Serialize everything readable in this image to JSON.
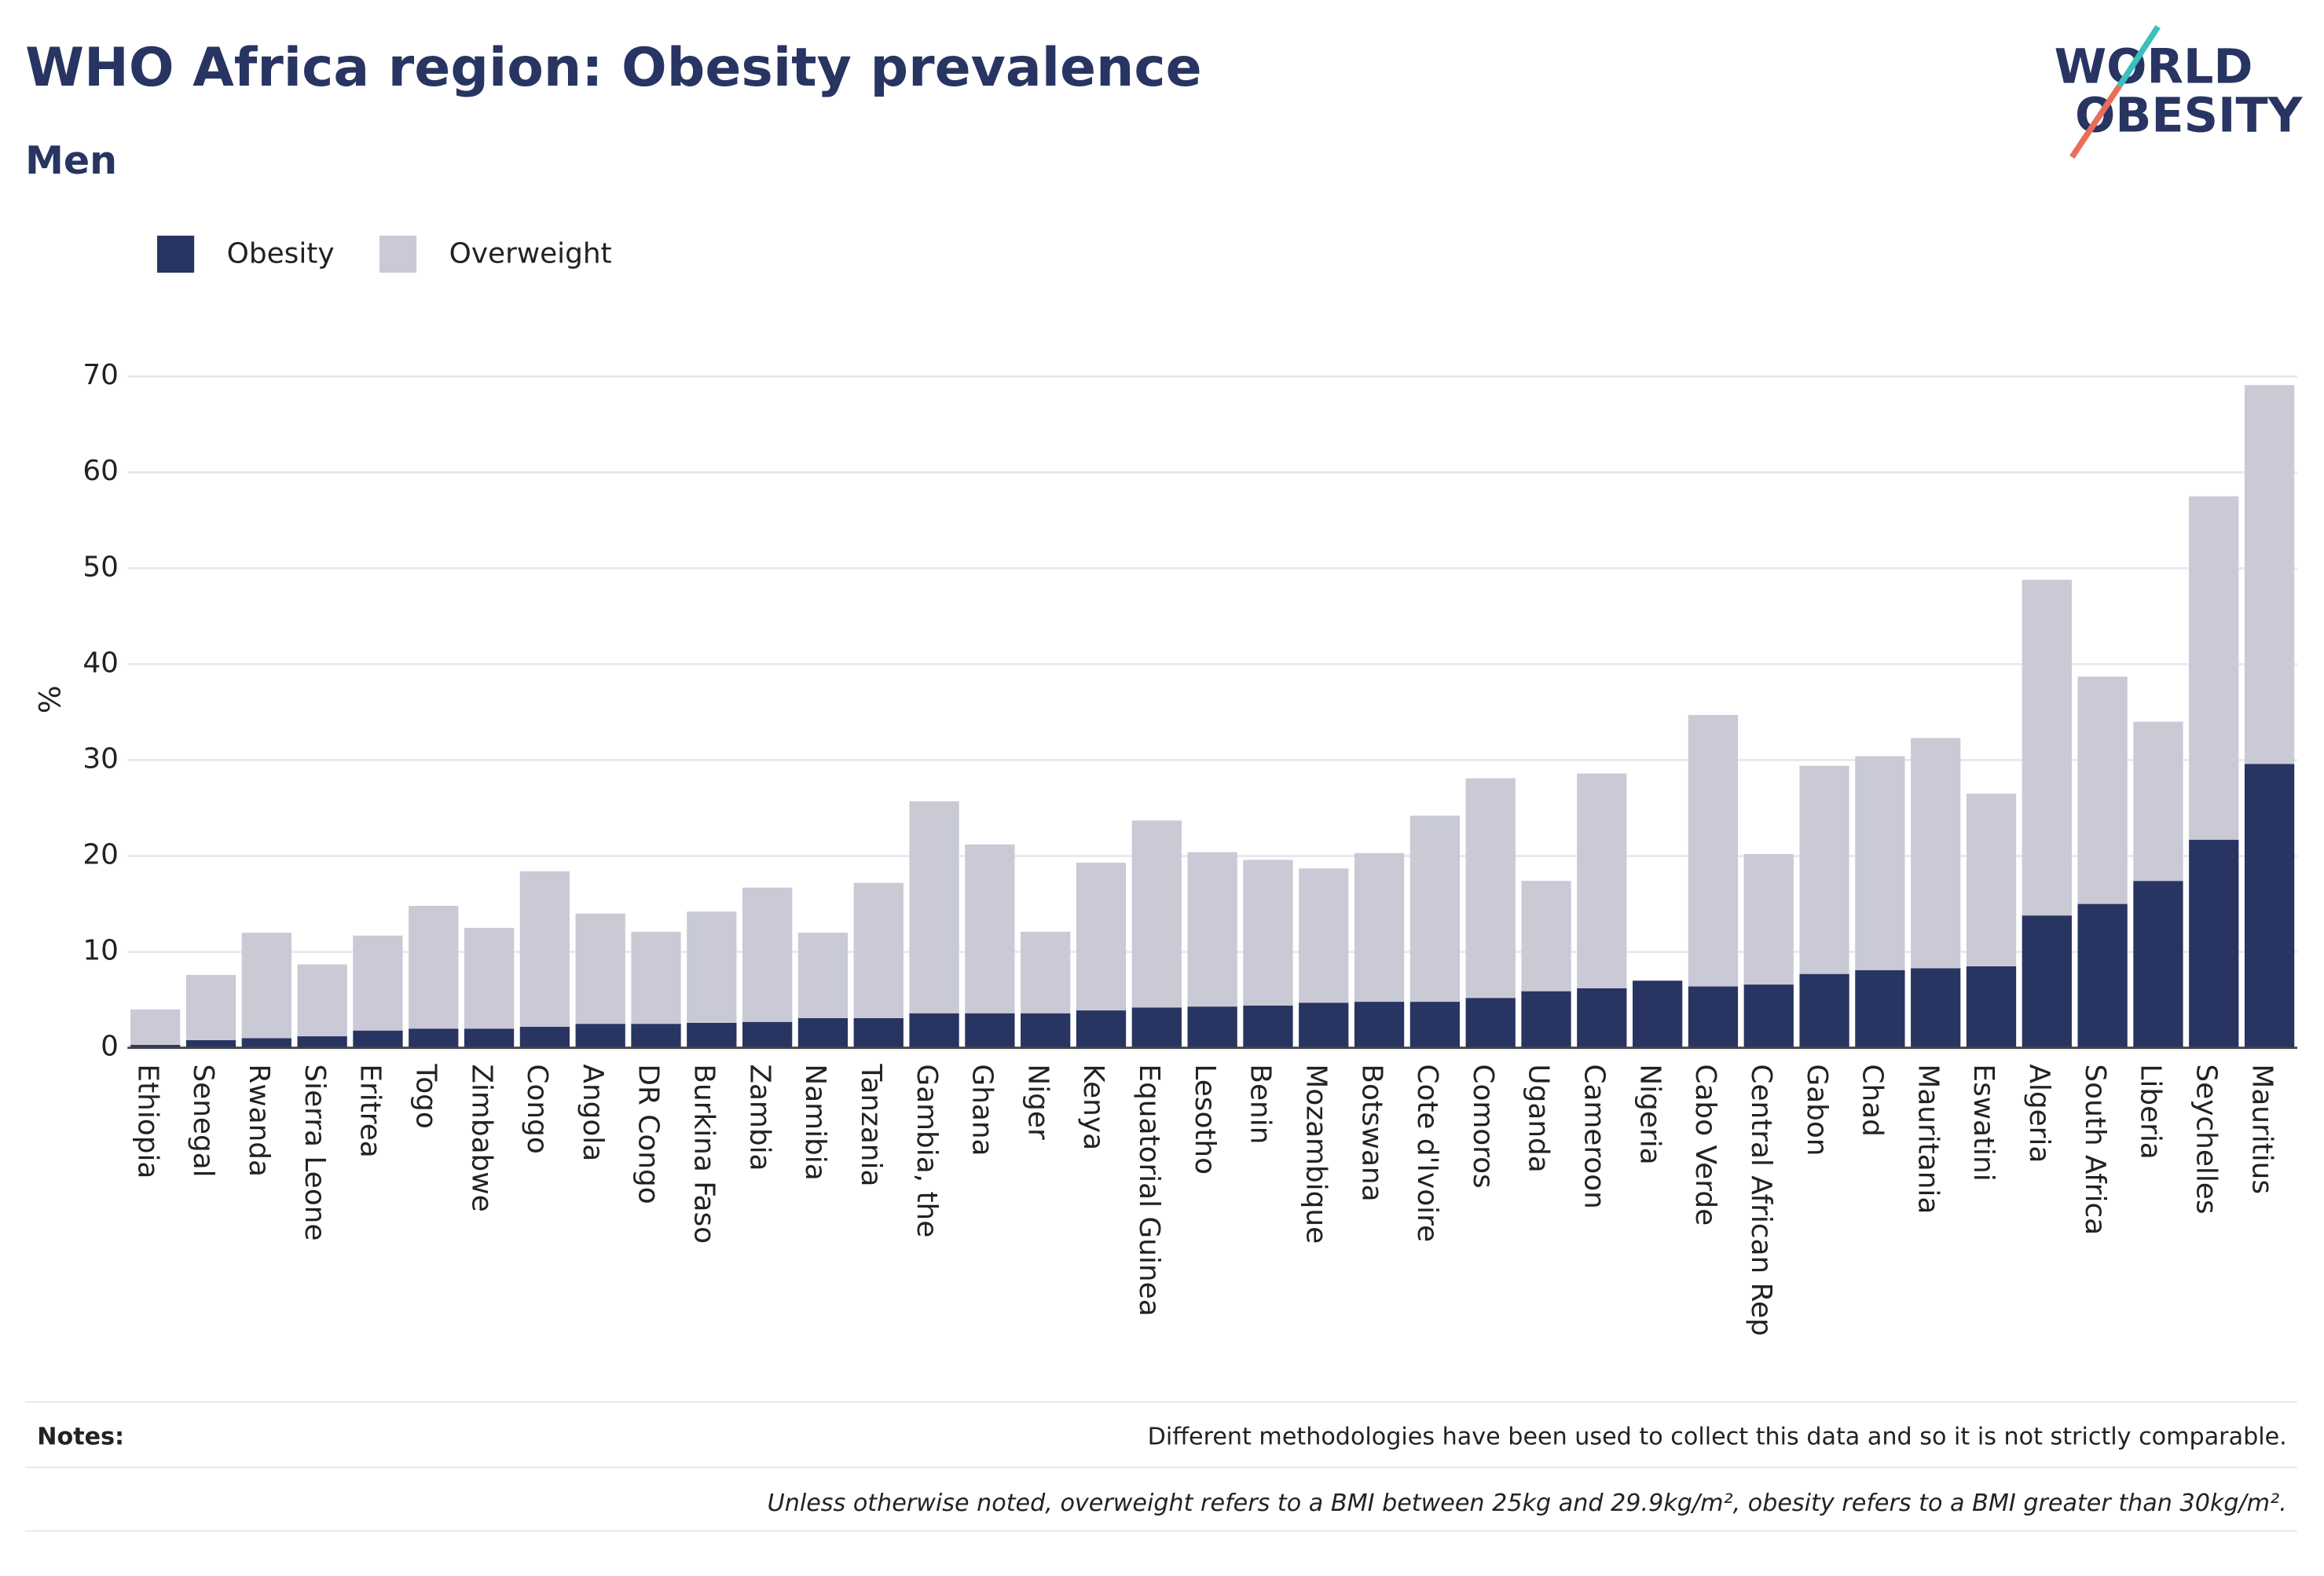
{
  "chart_data": {
    "type": "bar",
    "title": "WHO Africa region: Obesity prevalence",
    "subtitle": "Men",
    "y_label": "%",
    "logo": [
      "WORLD",
      "OBESITY"
    ],
    "categories": [
      "Ethiopia",
      "Senegal",
      "Rwanda",
      "Sierra Leone",
      "Eritrea",
      "Togo",
      "Zimbabwe",
      "Congo",
      "Angola",
      "DR Congo",
      "Burkina Faso",
      "Zambia",
      "Namibia",
      "Tanzania",
      "Gambia, the",
      "Ghana",
      "Niger",
      "Kenya",
      "Equatorial Guinea",
      "Lesotho",
      "Benin",
      "Mozambique",
      "Botswana",
      "Cote d'Ivoire",
      "Comoros",
      "Uganda",
      "Cameroon",
      "Nigeria",
      "Cabo Verde",
      "Central African Rep",
      "Gabon",
      "Chad",
      "Mauritania",
      "Eswatini",
      "Algeria",
      "South Africa",
      "Liberia",
      "Seychelles",
      "Mauritius"
    ],
    "series": [
      {
        "name": "Obesity",
        "color": "#283462",
        "values": [
          0.3,
          0.8,
          1.0,
          1.2,
          1.8,
          2.0,
          2.0,
          2.2,
          2.5,
          2.5,
          2.6,
          2.7,
          3.1,
          3.1,
          3.6,
          3.6,
          3.6,
          3.9,
          4.2,
          4.3,
          4.4,
          4.7,
          4.8,
          4.8,
          5.2,
          5.9,
          6.2,
          7.0,
          6.4,
          6.6,
          7.7,
          8.1,
          8.3,
          8.5,
          13.8,
          15.0,
          17.4,
          21.7,
          29.6
        ]
      },
      {
        "name": "Overweight",
        "color": "#c9cad6",
        "values": [
          3.7,
          6.8,
          11.0,
          7.5,
          9.9,
          12.8,
          10.5,
          16.2,
          11.5,
          9.6,
          11.6,
          14.0,
          8.9,
          14.1,
          22.1,
          17.6,
          8.5,
          15.4,
          19.5,
          16.1,
          15.2,
          14.0,
          15.5,
          19.4,
          22.9,
          11.5,
          22.4,
          null,
          28.3,
          13.6,
          21.7,
          22.3,
          24.0,
          18.0,
          35.0,
          23.7,
          16.6,
          35.8,
          39.5
        ]
      }
    ],
    "stacked": true,
    "ylim": [
      0,
      70
    ],
    "yticks": [
      0,
      10,
      20,
      30,
      40,
      50,
      60,
      70
    ],
    "grid": true,
    "notes_label": "Notes:",
    "notes": [
      "Different methodologies have been used to collect this data and so it is not strictly comparable.",
      "Unless otherwise noted, overweight refers to a BMI between 25kg and 29.9kg/m², obesity refers to a BMI greater than 30kg/m²."
    ]
  }
}
